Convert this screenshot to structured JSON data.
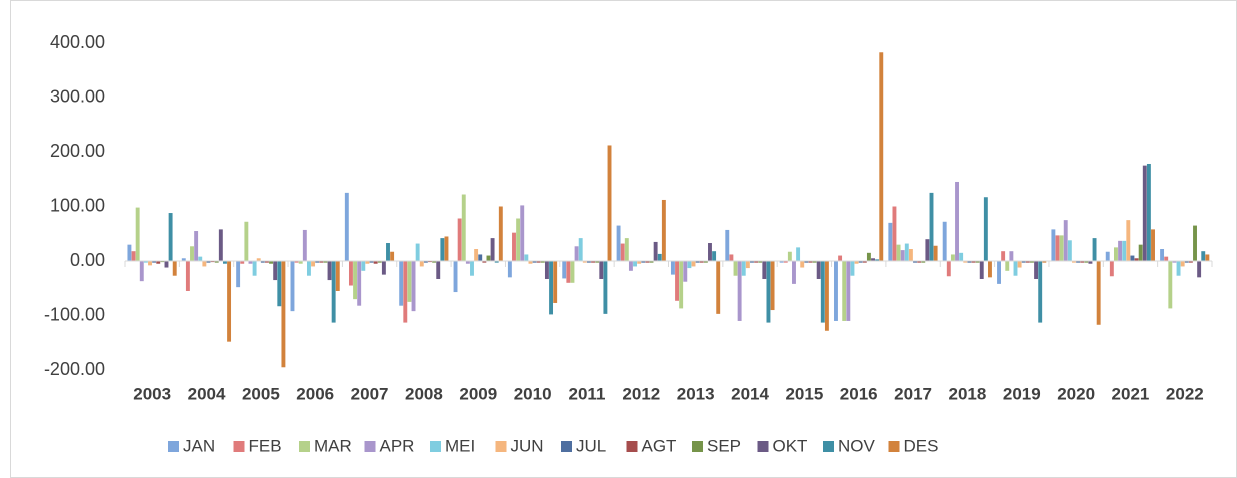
{
  "chart_data": {
    "type": "bar",
    "categories": [
      "2003",
      "2004",
      "2005",
      "2006",
      "2007",
      "2008",
      "2009",
      "2010",
      "2011",
      "2012",
      "2013",
      "2014",
      "2015",
      "2016",
      "2017",
      "2018",
      "2019",
      "2020",
      "2021",
      "2022"
    ],
    "series": [
      {
        "name": "JAN",
        "color": "#7ea6dc",
        "values": [
          30,
          5,
          -48,
          -92,
          125,
          -82,
          -57,
          -30,
          -32,
          65,
          -25,
          57,
          -3,
          -110,
          70,
          72,
          -42,
          58,
          17,
          22
        ]
      },
      {
        "name": "FEB",
        "color": "#e07b7b",
        "values": [
          18,
          -55,
          -5,
          -3,
          -45,
          -113,
          78,
          52,
          -40,
          32,
          -73,
          12,
          -3,
          10,
          100,
          -28,
          18,
          47,
          -28,
          8
        ]
      },
      {
        "name": "MAR",
        "color": "#b5d18a",
        "values": [
          98,
          27,
          72,
          -5,
          -70,
          -75,
          122,
          78,
          -40,
          42,
          -87,
          -27,
          17,
          -110,
          30,
          12,
          -18,
          47,
          25,
          -87
        ]
      },
      {
        "name": "APR",
        "color": "#a996cc",
        "values": [
          -37,
          55,
          -5,
          57,
          -82,
          -92,
          -5,
          102,
          27,
          -18,
          -38,
          -110,
          -42,
          -110,
          20,
          145,
          18,
          75,
          37,
          -3
        ]
      },
      {
        "name": "MEI",
        "color": "#7fcde0",
        "values": [
          -3,
          8,
          -27,
          -27,
          -18,
          32,
          -27,
          12,
          42,
          -10,
          -13,
          -27,
          25,
          -27,
          32,
          15,
          -27,
          38,
          37,
          -27
        ]
      },
      {
        "name": "JUN",
        "color": "#f5b67e",
        "values": [
          -8,
          -10,
          5,
          -10,
          -5,
          -10,
          22,
          -5,
          -3,
          -5,
          -10,
          -13,
          -12,
          -5,
          22,
          -3,
          -12,
          -3,
          75,
          -10
        ]
      },
      {
        "name": "JUL",
        "color": "#4f6fa0",
        "values": [
          -3,
          -3,
          -3,
          -3,
          -3,
          -3,
          12,
          -3,
          -3,
          -3,
          -3,
          -3,
          -3,
          -3,
          -3,
          -3,
          -3,
          -3,
          10,
          -3
        ]
      },
      {
        "name": "AGT",
        "color": "#a64d4d",
        "values": [
          -5,
          -2,
          -3,
          -3,
          -5,
          -2,
          -3,
          -3,
          -3,
          -3,
          -3,
          -3,
          -3,
          -3,
          -3,
          -3,
          -3,
          -3,
          5,
          -3
        ]
      },
      {
        "name": "SEP",
        "color": "#76944a",
        "values": [
          -2,
          -3,
          -5,
          -3,
          -3,
          -3,
          10,
          -3,
          -3,
          -3,
          -3,
          -3,
          -3,
          15,
          -3,
          -3,
          -3,
          -3,
          30,
          65
        ]
      },
      {
        "name": "OKT",
        "color": "#6b5a85",
        "values": [
          -12,
          58,
          -35,
          -35,
          -25,
          -33,
          42,
          -33,
          -33,
          35,
          33,
          -33,
          -33,
          5,
          40,
          -33,
          -33,
          -5,
          175,
          -30
        ]
      },
      {
        "name": "NOV",
        "color": "#3f8fa5",
        "values": [
          88,
          -5,
          -83,
          -113,
          33,
          42,
          -3,
          -98,
          -97,
          13,
          18,
          -113,
          -113,
          3,
          125,
          117,
          -113,
          42,
          178,
          18
        ]
      },
      {
        "name": "DES",
        "color": "#d2823c",
        "values": [
          -27,
          -148,
          -195,
          -55,
          17,
          45,
          100,
          -77,
          212,
          112,
          -97,
          -90,
          -128,
          383,
          28,
          -30,
          -3,
          -117,
          58,
          12
        ]
      }
    ],
    "ylim": [
      -200,
      400
    ],
    "yticks": [
      {
        "value": -200,
        "label": "-200.00"
      },
      {
        "value": -100,
        "label": "-100.00"
      },
      {
        "value": 0,
        "label": "0.00"
      },
      {
        "value": 100,
        "label": "100.00"
      },
      {
        "value": 200,
        "label": "200.00"
      },
      {
        "value": 300,
        "label": "300.00"
      },
      {
        "value": 400,
        "label": "400.00"
      }
    ],
    "grid": false,
    "legend": "bottom"
  }
}
